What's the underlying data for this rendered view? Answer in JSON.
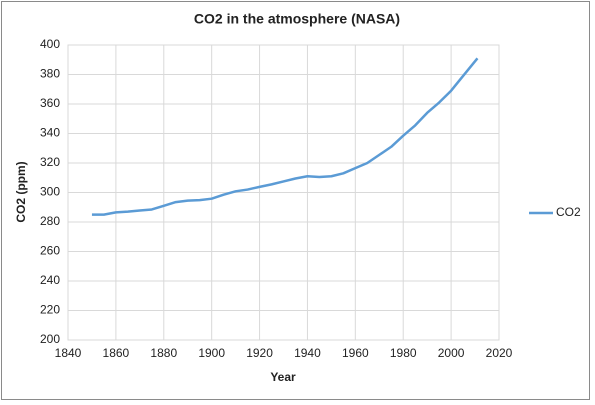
{
  "chart_data": {
    "type": "line",
    "title": "CO2 in the atmosphere (NASA)",
    "x_label": "Year",
    "y_label": "CO2 (ppm)",
    "x": [
      1850,
      1855,
      1860,
      1865,
      1870,
      1875,
      1880,
      1885,
      1890,
      1895,
      1900,
      1905,
      1910,
      1915,
      1920,
      1925,
      1930,
      1935,
      1940,
      1945,
      1950,
      1955,
      1960,
      1965,
      1970,
      1975,
      1980,
      1985,
      1990,
      1995,
      2000,
      2005,
      2011
    ],
    "series": [
      {
        "name": "CO2",
        "color": "#5b9bd5",
        "values": [
          285,
          285,
          286.5,
          287,
          287.8,
          288.5,
          291,
          293.5,
          294.5,
          294.8,
          295.8,
          298.5,
          300.8,
          302,
          303.8,
          305.5,
          307.5,
          309.5,
          311,
          310.5,
          311,
          313,
          316.5,
          320,
          325.5,
          331,
          338.5,
          345.5,
          354,
          361,
          369,
          379,
          391
        ]
      }
    ],
    "xlim": [
      1840,
      2020
    ],
    "xticks": [
      1840,
      1860,
      1880,
      1900,
      1920,
      1940,
      1960,
      1980,
      2000,
      2020
    ],
    "ylim": [
      200,
      400
    ],
    "yticks": [
      200,
      220,
      240,
      260,
      280,
      300,
      320,
      340,
      360,
      380,
      400
    ],
    "grid": true,
    "legend": "right"
  }
}
